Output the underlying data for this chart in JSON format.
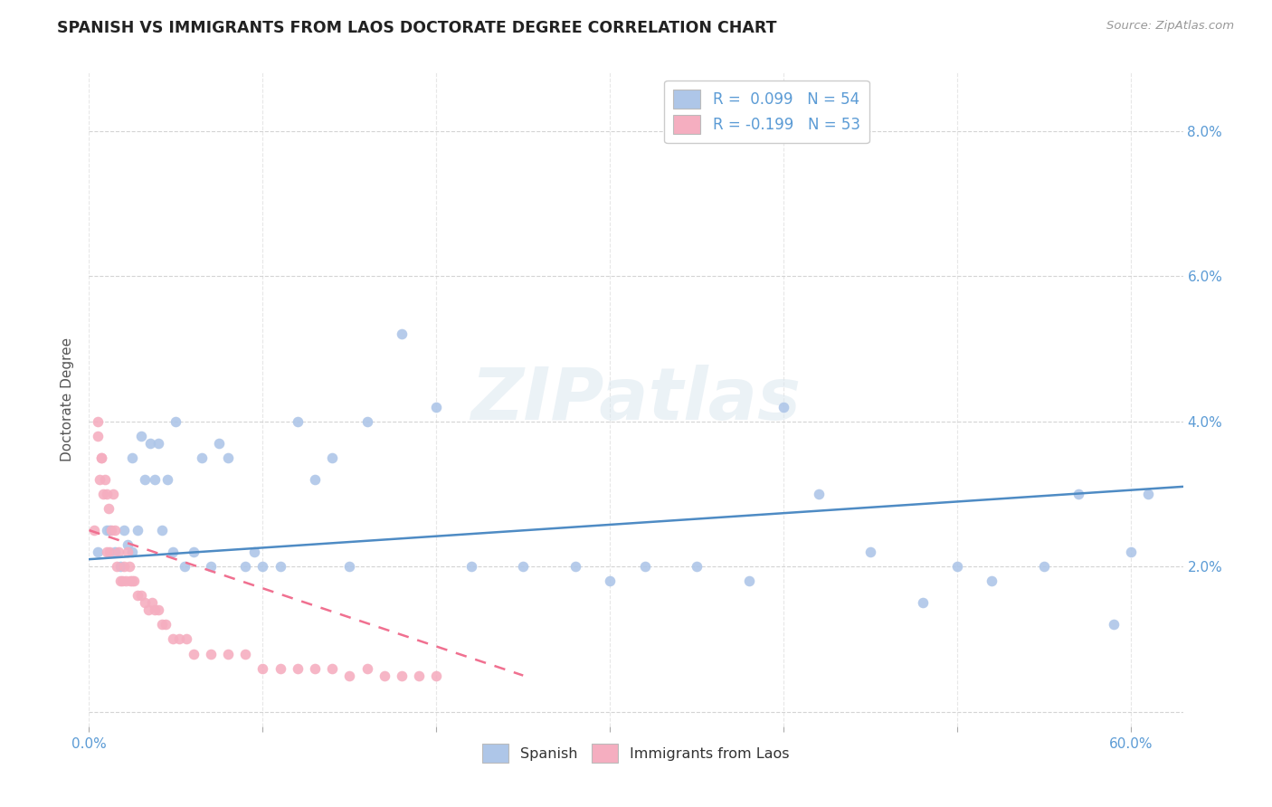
{
  "title": "SPANISH VS IMMIGRANTS FROM LAOS DOCTORATE DEGREE CORRELATION CHART",
  "source": "Source: ZipAtlas.com",
  "ylabel": "Doctorate Degree",
  "xlim": [
    0.0,
    0.63
  ],
  "ylim": [
    -0.002,
    0.088
  ],
  "yticks": [
    0.0,
    0.02,
    0.04,
    0.06,
    0.08
  ],
  "ytick_labels": [
    "",
    "2.0%",
    "4.0%",
    "6.0%",
    "8.0%"
  ],
  "series1_name": "Spanish",
  "series2_name": "Immigrants from Laos",
  "series1_color": "#aec6e8",
  "series2_color": "#f5aec0",
  "series1_line_color": "#4e8bc4",
  "series2_line_color": "#f07090",
  "watermark_text": "ZIPatlas",
  "spanish_x": [
    0.005,
    0.01,
    0.012,
    0.015,
    0.018,
    0.02,
    0.022,
    0.025,
    0.025,
    0.028,
    0.03,
    0.032,
    0.035,
    0.038,
    0.04,
    0.042,
    0.045,
    0.048,
    0.05,
    0.055,
    0.06,
    0.065,
    0.07,
    0.075,
    0.08,
    0.09,
    0.095,
    0.1,
    0.11,
    0.12,
    0.13,
    0.14,
    0.15,
    0.16,
    0.18,
    0.2,
    0.22,
    0.25,
    0.28,
    0.3,
    0.32,
    0.35,
    0.38,
    0.4,
    0.42,
    0.45,
    0.48,
    0.5,
    0.52,
    0.55,
    0.57,
    0.59,
    0.6,
    0.61
  ],
  "spanish_y": [
    0.022,
    0.025,
    0.025,
    0.022,
    0.02,
    0.025,
    0.023,
    0.035,
    0.022,
    0.025,
    0.038,
    0.032,
    0.037,
    0.032,
    0.037,
    0.025,
    0.032,
    0.022,
    0.04,
    0.02,
    0.022,
    0.035,
    0.02,
    0.037,
    0.035,
    0.02,
    0.022,
    0.02,
    0.02,
    0.04,
    0.032,
    0.035,
    0.02,
    0.04,
    0.052,
    0.042,
    0.02,
    0.02,
    0.02,
    0.018,
    0.02,
    0.02,
    0.018,
    0.042,
    0.03,
    0.022,
    0.015,
    0.02,
    0.018,
    0.02,
    0.03,
    0.012,
    0.022,
    0.03
  ],
  "laos_x": [
    0.003,
    0.005,
    0.006,
    0.007,
    0.008,
    0.009,
    0.01,
    0.011,
    0.012,
    0.013,
    0.014,
    0.015,
    0.016,
    0.017,
    0.018,
    0.019,
    0.02,
    0.021,
    0.022,
    0.023,
    0.024,
    0.025,
    0.026,
    0.028,
    0.03,
    0.032,
    0.034,
    0.036,
    0.038,
    0.04,
    0.042,
    0.044,
    0.048,
    0.052,
    0.056,
    0.06,
    0.07,
    0.08,
    0.09,
    0.1,
    0.11,
    0.12,
    0.13,
    0.14,
    0.15,
    0.16,
    0.17,
    0.18,
    0.19,
    0.2,
    0.005,
    0.007,
    0.01
  ],
  "laos_y": [
    0.025,
    0.038,
    0.032,
    0.035,
    0.03,
    0.032,
    0.022,
    0.028,
    0.022,
    0.025,
    0.03,
    0.025,
    0.02,
    0.022,
    0.018,
    0.018,
    0.02,
    0.018,
    0.022,
    0.02,
    0.018,
    0.018,
    0.018,
    0.016,
    0.016,
    0.015,
    0.014,
    0.015,
    0.014,
    0.014,
    0.012,
    0.012,
    0.01,
    0.01,
    0.01,
    0.008,
    0.008,
    0.008,
    0.008,
    0.006,
    0.006,
    0.006,
    0.006,
    0.006,
    0.005,
    0.006,
    0.005,
    0.005,
    0.005,
    0.005,
    0.04,
    0.035,
    0.03
  ],
  "spanish_trend_x": [
    0.0,
    0.63
  ],
  "spanish_trend_y": [
    0.021,
    0.031
  ],
  "laos_trend_x": [
    0.0,
    0.25
  ],
  "laos_trend_y": [
    0.025,
    0.005
  ]
}
